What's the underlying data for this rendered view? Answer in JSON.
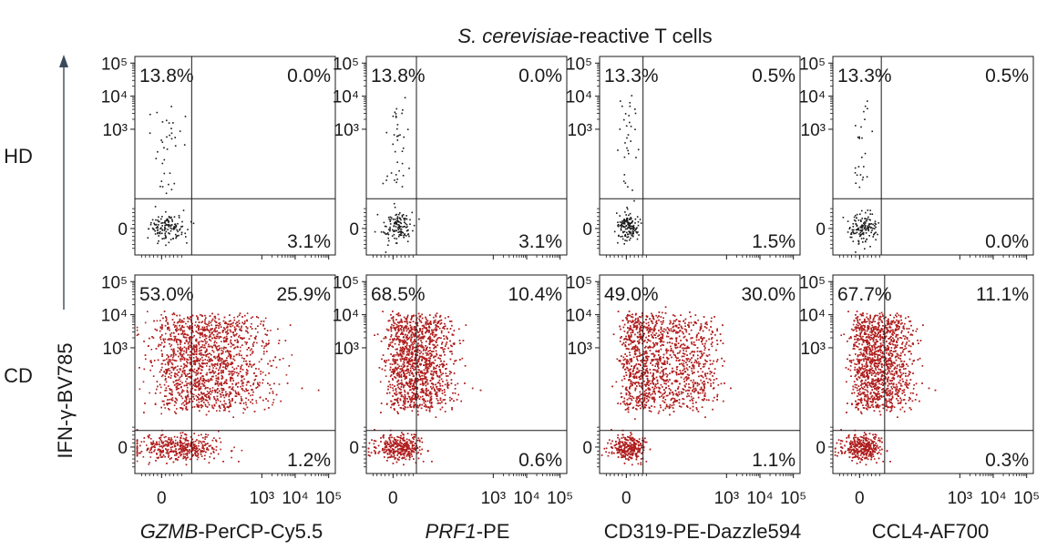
{
  "chart_data": {
    "type": "scatter",
    "title_italic": "S. cerevisiae",
    "title_rest": "-reactive T cells",
    "ylabel": "IFN-γ-BV785",
    "rows": [
      {
        "label": "HD",
        "color": "#1a1a1a"
      },
      {
        "label": "CD",
        "color": "#b01e1e"
      }
    ],
    "columns": [
      {
        "label_italic": "GZMB",
        "label_rest": "-PerCP-Cy5.5"
      },
      {
        "label_italic": "PRF1",
        "label_rest": "-PE"
      },
      {
        "label_italic": "",
        "label_rest": "CD319-PE-Dazzle594"
      },
      {
        "label_italic": "",
        "label_rest": "CCL4-AF700"
      }
    ],
    "x_tick_labels": [
      "0",
      "10³",
      "10⁴",
      "10⁵"
    ],
    "y_tick_labels": [
      "10⁵",
      "10⁴",
      "10³",
      "0"
    ],
    "axis_range": {
      "decades": [
        0,
        3,
        4,
        5
      ],
      "lower": -0.8,
      "upper": 5.2
    },
    "panels": [
      {
        "row": 0,
        "col": 0,
        "gate_x": 0.9,
        "gate_y": 0.9,
        "q_ul": "13.8%",
        "q_ur": "0.0%",
        "q_lr": "3.1%",
        "n_events": 170,
        "pop": {
          "cx": 0.1,
          "sx": 0.28,
          "ly": 0.05,
          "lsy": 0.22,
          "uy_min": 1.1,
          "uy_max": 3.9,
          "upper_frac": 0.18
        }
      },
      {
        "row": 0,
        "col": 1,
        "gate_x": 0.7,
        "gate_y": 0.9,
        "q_ul": "13.8%",
        "q_ur": "0.0%",
        "q_lr": "3.1%",
        "n_events": 170,
        "pop": {
          "cx": 0.1,
          "sx": 0.22,
          "ly": 0.05,
          "lsy": 0.22,
          "uy_min": 1.1,
          "uy_max": 3.9,
          "upper_frac": 0.18
        }
      },
      {
        "row": 0,
        "col": 2,
        "gate_x": 0.5,
        "gate_y": 0.9,
        "q_ul": "13.3%",
        "q_ur": "0.5%",
        "q_lr": "1.5%",
        "n_events": 170,
        "pop": {
          "cx": 0.05,
          "sx": 0.18,
          "ly": 0.05,
          "lsy": 0.22,
          "uy_min": 1.1,
          "uy_max": 3.9,
          "upper_frac": 0.17
        }
      },
      {
        "row": 0,
        "col": 3,
        "gate_x": 0.65,
        "gate_y": 0.9,
        "q_ul": "13.3%",
        "q_ur": "0.5%",
        "q_lr": "0.0%",
        "n_events": 170,
        "pop": {
          "cx": 0.08,
          "sx": 0.2,
          "ly": 0.05,
          "lsy": 0.22,
          "uy_min": 1.1,
          "uy_max": 3.9,
          "upper_frac": 0.17
        }
      },
      {
        "row": 1,
        "col": 0,
        "gate_x": 0.9,
        "gate_y": 0.5,
        "q_ul": "53.0%",
        "q_ur": "25.9%",
        "q_lr": "1.2%",
        "n_events": 3400,
        "pop": {
          "cx": 0.45,
          "sx": 0.65,
          "ly": 0.0,
          "lsy": 0.2,
          "uy_min": 1.2,
          "uy_max": 3.9,
          "upper_frac": 0.78,
          "ux_spread": 2.4
        }
      },
      {
        "row": 1,
        "col": 1,
        "gate_x": 0.7,
        "gate_y": 0.5,
        "q_ul": "68.5%",
        "q_ur": "10.4%",
        "q_lr": "0.6%",
        "n_events": 3200,
        "pop": {
          "cx": 0.15,
          "sx": 0.35,
          "ly": 0.0,
          "lsy": 0.2,
          "uy_min": 1.2,
          "uy_max": 3.9,
          "upper_frac": 0.78,
          "ux_spread": 1.5
        }
      },
      {
        "row": 1,
        "col": 2,
        "gate_x": 0.5,
        "gate_y": 0.5,
        "q_ul": "49.0%",
        "q_ur": "30.0%",
        "q_lr": "1.1%",
        "n_events": 3300,
        "pop": {
          "cx": 0.05,
          "sx": 0.25,
          "ly": 0.0,
          "lsy": 0.2,
          "uy_min": 1.2,
          "uy_max": 3.9,
          "upper_frac": 0.8,
          "ux_spread": 2.6
        }
      },
      {
        "row": 1,
        "col": 3,
        "gate_x": 0.75,
        "gate_y": 0.5,
        "q_ul": "67.7%",
        "q_ur": "11.1%",
        "q_lr": "0.3%",
        "n_events": 3200,
        "pop": {
          "cx": 0.05,
          "sx": 0.3,
          "ly": 0.0,
          "lsy": 0.2,
          "uy_min": 1.2,
          "uy_max": 3.9,
          "upper_frac": 0.78,
          "ux_spread": 1.4
        }
      }
    ]
  }
}
